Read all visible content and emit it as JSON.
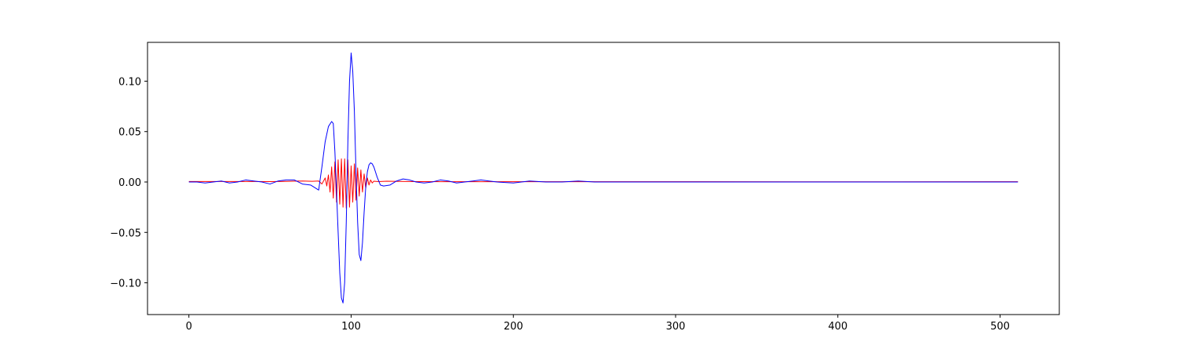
{
  "chart_data": {
    "type": "line",
    "title": "",
    "xlabel": "",
    "ylabel": "",
    "xlim": [
      -25.5,
      536.5
    ],
    "ylim": [
      -0.1315,
      0.1385
    ],
    "xticks": [
      0,
      100,
      200,
      300,
      400,
      500
    ],
    "xtick_labels": [
      "0",
      "100",
      "200",
      "300",
      "400",
      "500"
    ],
    "yticks": [
      -0.1,
      -0.05,
      0.0,
      0.05,
      0.1
    ],
    "ytick_labels": [
      "−0.10",
      "−0.05",
      "0.00",
      "0.05",
      "0.10"
    ],
    "grid": false,
    "series": [
      {
        "color": "#ff0000",
        "x": [
          0,
          10,
          20,
          30,
          40,
          50,
          60,
          70,
          76,
          80,
          82,
          84,
          85,
          86,
          87,
          88,
          89,
          90,
          91,
          92,
          93,
          94,
          95,
          96,
          97,
          98,
          99,
          100,
          101,
          102,
          103,
          104,
          105,
          106,
          107,
          108,
          109,
          110,
          111,
          112,
          113,
          114,
          116,
          118,
          122,
          130,
          140,
          160,
          200,
          300,
          400,
          511
        ],
        "y": [
          0.0005,
          0.0005,
          0.0005,
          0.0005,
          0.0005,
          0.0004,
          0.0006,
          0.001,
          0.0007,
          0.001,
          -0.002,
          0.004,
          -0.004,
          0.007,
          -0.01,
          0.015,
          -0.016,
          0.02,
          -0.02,
          0.022,
          -0.022,
          0.023,
          -0.025,
          0.023,
          -0.026,
          0.022,
          -0.025,
          0.016,
          -0.02,
          0.018,
          -0.018,
          0.014,
          -0.014,
          0.012,
          -0.01,
          0.008,
          -0.006,
          0.004,
          -0.003,
          0.002,
          -0.001,
          0.0008,
          0.0005,
          0.0005,
          0.0008,
          0.0006,
          0.0004,
          0.0003,
          0.0003,
          0.0003,
          0.0002,
          0.0003
        ]
      },
      {
        "color": "#0000ff",
        "x": [
          0,
          5,
          10,
          15,
          20,
          25,
          30,
          35,
          40,
          45,
          50,
          55,
          60,
          65,
          70,
          75,
          78,
          80,
          82,
          84,
          86,
          88,
          89,
          90,
          91,
          92,
          93,
          94,
          95,
          96,
          97,
          98,
          99,
          100,
          101,
          102,
          103,
          104,
          105,
          106,
          107,
          108,
          109,
          110,
          111,
          112,
          113,
          114,
          116,
          118,
          120,
          124,
          128,
          132,
          136,
          140,
          145,
          150,
          155,
          160,
          165,
          170,
          175,
          180,
          185,
          190,
          200,
          210,
          220,
          230,
          240,
          250,
          260,
          270,
          280,
          290,
          300,
          320,
          340,
          360,
          380,
          400,
          420,
          440,
          460,
          480,
          500,
          511
        ],
        "y": [
          0.0,
          0.0,
          -0.001,
          0.0,
          0.001,
          -0.001,
          0.0,
          0.002,
          0.001,
          0.0,
          -0.002,
          0.001,
          0.002,
          0.002,
          -0.002,
          -0.003,
          -0.006,
          -0.008,
          0.015,
          0.04,
          0.055,
          0.06,
          0.058,
          0.03,
          -0.01,
          -0.05,
          -0.09,
          -0.115,
          -0.12,
          -0.1,
          -0.04,
          0.04,
          0.1,
          0.128,
          0.11,
          0.07,
          0.01,
          -0.04,
          -0.072,
          -0.078,
          -0.06,
          -0.03,
          -0.005,
          0.01,
          0.017,
          0.019,
          0.018,
          0.015,
          0.005,
          -0.003,
          -0.004,
          -0.003,
          0.001,
          0.003,
          0.002,
          0.0,
          -0.001,
          0.0,
          0.002,
          0.001,
          -0.001,
          0.0,
          0.001,
          0.002,
          0.001,
          0.0,
          -0.001,
          0.001,
          0.0,
          0.0,
          0.001,
          0.0,
          0.0,
          0.0,
          0.0,
          0.0,
          0.0,
          0.0,
          0.0,
          0.0,
          0.0,
          0.0,
          0.0,
          0.0,
          0.0,
          0.0,
          0.0,
          0.0
        ]
      }
    ]
  }
}
